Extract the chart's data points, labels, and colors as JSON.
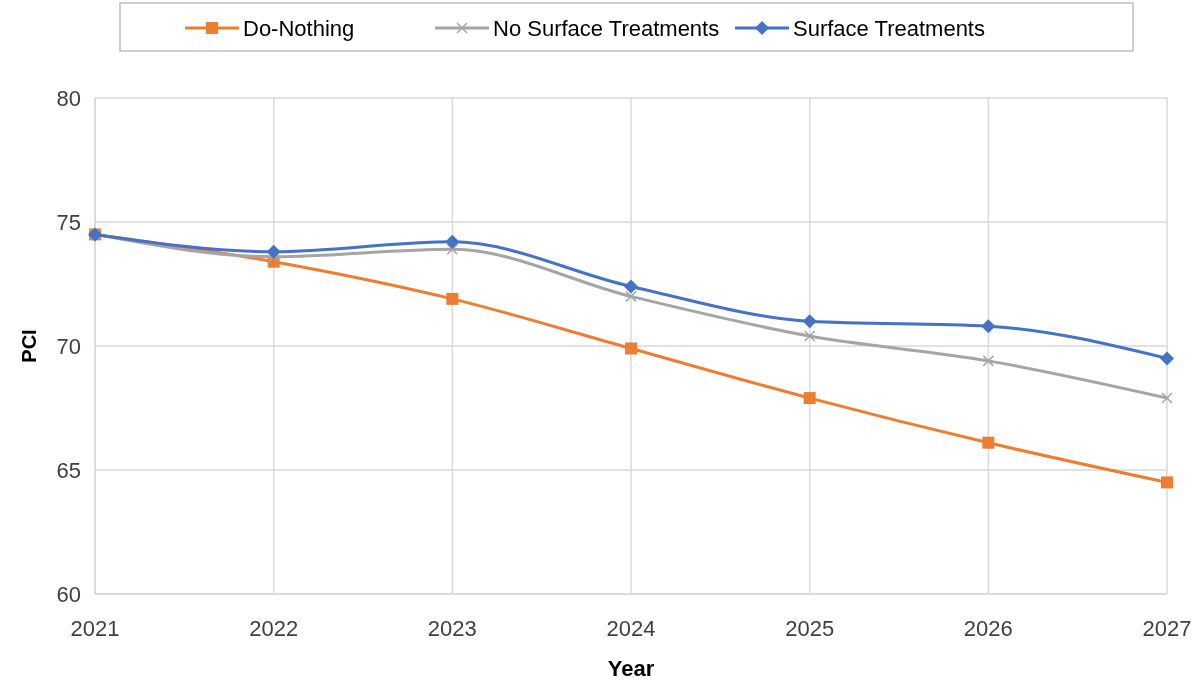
{
  "chart_data": {
    "type": "line",
    "xlabel": "Year",
    "ylabel": "PCI",
    "x": [
      2021,
      2022,
      2023,
      2024,
      2025,
      2026,
      2027
    ],
    "xlim": [
      2021,
      2027
    ],
    "xticks": [
      2021,
      2022,
      2023,
      2024,
      2025,
      2026,
      2027
    ],
    "ylim": [
      60,
      80
    ],
    "yticks": [
      60,
      65,
      70,
      75,
      80
    ],
    "grid": true,
    "legend": "top",
    "line_style": "solid",
    "series": [
      {
        "name": "Do-Nothing",
        "color": "#ed7d31",
        "marker": "square",
        "values": [
          74.5,
          73.4,
          71.9,
          69.9,
          67.9,
          66.1,
          64.5
        ]
      },
      {
        "name": "No Surface Treatments",
        "color": "#a5a5a5",
        "marker": "cross",
        "values": [
          74.5,
          73.6,
          73.9,
          72.0,
          70.4,
          69.4,
          67.9
        ]
      },
      {
        "name": "Surface Treatments",
        "color": "#4472c4",
        "marker": "diamond",
        "values": [
          74.5,
          73.8,
          74.2,
          72.4,
          71.0,
          70.8,
          69.5
        ]
      }
    ]
  }
}
